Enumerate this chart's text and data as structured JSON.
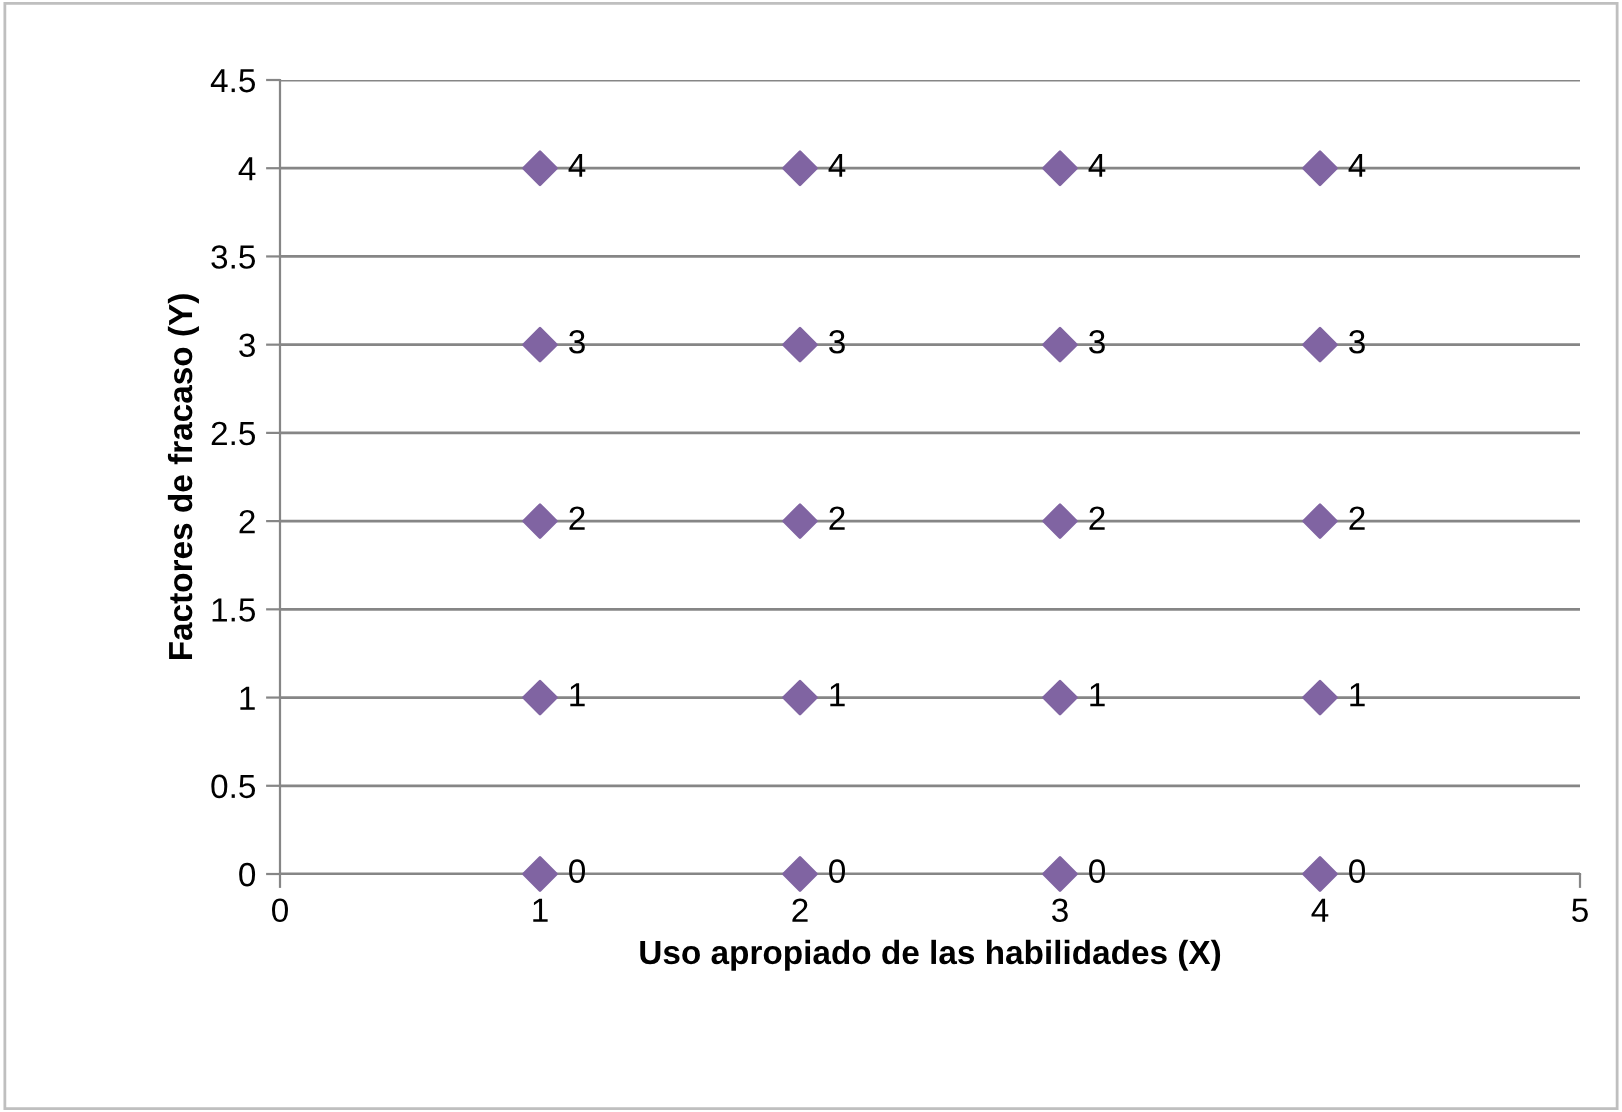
{
  "chart_data": {
    "type": "scatter",
    "xlabel": "Uso apropiado de las habilidades (X)",
    "ylabel": "Factores de fracaso (Y)",
    "x": [
      1,
      2,
      3,
      4,
      1,
      2,
      3,
      4,
      1,
      2,
      3,
      4,
      1,
      2,
      3,
      4,
      1,
      2,
      3,
      4
    ],
    "values": [
      4,
      4,
      4,
      4,
      3,
      3,
      3,
      3,
      2,
      2,
      2,
      2,
      1,
      1,
      1,
      1,
      0,
      0,
      0,
      0
    ],
    "color": "#8064a2",
    "marker": "diamond",
    "data_labels": true,
    "grid": "y",
    "xlim": [
      0,
      5
    ],
    "xticks": [
      0,
      1,
      2,
      3,
      4,
      5
    ],
    "ylim": [
      0,
      4.5
    ],
    "yticks": [
      0,
      0.5,
      1,
      1.5,
      2,
      2.5,
      3,
      3.5,
      4,
      4.5
    ]
  }
}
